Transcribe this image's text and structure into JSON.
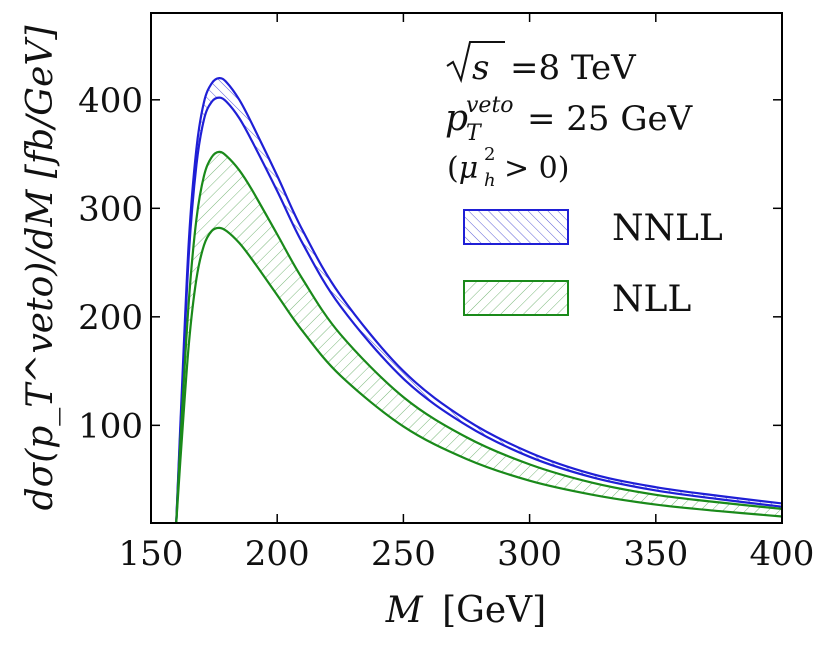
{
  "chart_data": {
    "type": "line",
    "title": "",
    "xlabel_var": "M",
    "xlabel_unit": "[GeV]",
    "ylabel": "dσ(p_T^veto)/dM [fb/GeV]",
    "xlim": [
      150,
      400
    ],
    "ylim": [
      10,
      480
    ],
    "xticks": [
      150,
      200,
      250,
      300,
      350,
      400
    ],
    "yticks": [
      100,
      200,
      300,
      400
    ],
    "xtick_labels": [
      "150",
      "200",
      "250",
      "300",
      "350",
      "400"
    ],
    "ytick_labels": [
      "100",
      "200",
      "300",
      "400"
    ],
    "grid": false,
    "legend_position": "top-right",
    "annotations": {
      "sqrt_s_value": "=8 TeV",
      "ptveto_value": "= 25 GeV",
      "mu_condition": "> 0)"
    },
    "series": [
      {
        "name": "NNLL",
        "color": "#1f1fd6",
        "hatch": "forward",
        "x": [
          160,
          162,
          165,
          168,
          171,
          174,
          177,
          180,
          185,
          190,
          200,
          210,
          225,
          250,
          275,
          300,
          325,
          350,
          375,
          400
        ],
        "upper": [
          10,
          120,
          270,
          355,
          398,
          415,
          420,
          416,
          400,
          378,
          330,
          280,
          220,
          150,
          105,
          75,
          55,
          43,
          35,
          28
        ],
        "lower": [
          10,
          113,
          258,
          340,
          382,
          398,
          402,
          398,
          383,
          362,
          316,
          268,
          210,
          143,
          100,
          71,
          52,
          40,
          32,
          25
        ]
      },
      {
        "name": "NLL",
        "color": "#1a8a1a",
        "hatch": "backward",
        "x": [
          160,
          162,
          165,
          168,
          171,
          174,
          177,
          180,
          185,
          190,
          200,
          210,
          225,
          250,
          275,
          300,
          325,
          350,
          375,
          400
        ],
        "upper": [
          10,
          100,
          215,
          290,
          330,
          347,
          352,
          348,
          335,
          317,
          276,
          235,
          184,
          126,
          89,
          64,
          47,
          36,
          29,
          23
        ],
        "lower": [
          10,
          80,
          175,
          235,
          266,
          279,
          282,
          279,
          268,
          253,
          220,
          187,
          146,
          99,
          69,
          49,
          36,
          27,
          21,
          16
        ]
      }
    ]
  }
}
